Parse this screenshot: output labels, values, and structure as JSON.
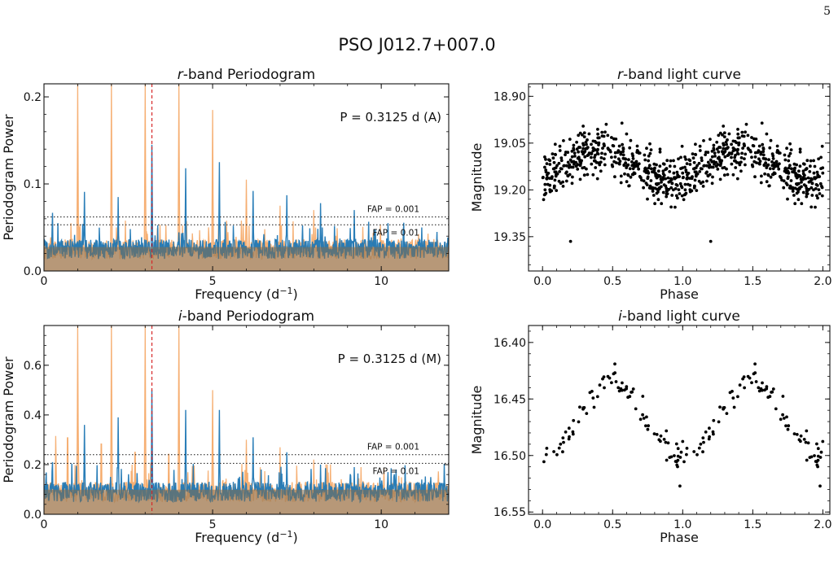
{
  "page_number": "5",
  "figure_title": "PSO J012.7+007.0",
  "chart_data": [
    {
      "type": "line",
      "title": "r-band Periodogram",
      "title_band": "r",
      "title_rest": "-band Periodogram",
      "xlabel": "Frequency (d",
      "xlabel_sup": "−1",
      "xlabel_end": ")",
      "ylabel": "Periodogram Power",
      "xlim": [
        0,
        12
      ],
      "ylim": [
        0,
        0.215
      ],
      "xticks": [
        0,
        5,
        10
      ],
      "xtick_labels": [
        "0",
        "5",
        "10"
      ],
      "yticks": [
        0.0,
        0.1,
        0.2
      ],
      "ytick_labels": [
        "0.0",
        "0.1",
        "0.2"
      ],
      "period_annotation": "P = 0.3125 d (A)",
      "best_frequency": 3.2,
      "fap_lines": [
        {
          "label": "FAP = 0.001",
          "value": 0.062
        },
        {
          "label": "FAP = 0.01",
          "value": 0.053
        }
      ],
      "noise_level": 0.025,
      "series": [
        {
          "color": "#f4a460",
          "peaks": [
            [
              1.0,
              0.215
            ],
            [
              2.0,
              0.215
            ],
            [
              3.0,
              0.215
            ],
            [
              4.0,
              0.215
            ],
            [
              5.0,
              0.185
            ],
            [
              6.0,
              0.105
            ],
            [
              7.0,
              0.075
            ],
            [
              8.0,
              0.07
            ],
            [
              1.15,
              0.04
            ],
            [
              2.2,
              0.05
            ]
          ]
        },
        {
          "color": "#1f77b4",
          "peaks": [
            [
              0.25,
              0.07
            ],
            [
              1.2,
              0.091
            ],
            [
              2.2,
              0.085
            ],
            [
              3.2,
              0.145
            ],
            [
              4.2,
              0.118
            ],
            [
              5.2,
              0.125
            ],
            [
              6.2,
              0.092
            ],
            [
              7.2,
              0.087
            ],
            [
              8.2,
              0.078
            ],
            [
              9.2,
              0.07
            ],
            [
              10.2,
              0.055
            ],
            [
              11.2,
              0.05
            ]
          ]
        }
      ]
    },
    {
      "type": "scatter",
      "title": "r-band light curve",
      "title_band": "r",
      "title_rest": "-band light curve",
      "xlabel": "Phase",
      "ylabel": "Magnitude",
      "xlim": [
        -0.1,
        2.05
      ],
      "ylim": [
        19.46,
        18.86
      ],
      "y_inverted": true,
      "xticks": [
        0.0,
        0.5,
        1.0,
        1.5,
        2.0
      ],
      "xtick_labels": [
        "0.0",
        "0.5",
        "1.0",
        "1.5",
        "2.0"
      ],
      "yticks": [
        18.9,
        19.05,
        19.2,
        19.35
      ],
      "ytick_labels": [
        "18.90",
        "19.05",
        "19.20",
        "19.35"
      ],
      "mean_magnitude": 19.12,
      "amplitude": 0.05,
      "peak_phase": 0.4,
      "scatter": 0.07,
      "points_per_cycle": 420,
      "outliers": [
        [
          0.2,
          19.365
        ],
        [
          1.2,
          19.365
        ]
      ]
    },
    {
      "type": "line",
      "title": "i-band Periodogram",
      "title_band": "i",
      "title_rest": "-band Periodogram",
      "xlabel": "Frequency (d",
      "xlabel_sup": "−1",
      "xlabel_end": ")",
      "ylabel": "Periodogram Power",
      "xlim": [
        0,
        12
      ],
      "ylim": [
        0,
        0.76
      ],
      "xticks": [
        0,
        5,
        10
      ],
      "xtick_labels": [
        "0",
        "5",
        "10"
      ],
      "yticks": [
        0.0,
        0.2,
        0.4,
        0.6
      ],
      "ytick_labels": [
        "0.0",
        "0.2",
        "0.4",
        "0.6"
      ],
      "period_annotation": "P = 0.3125 d (M)",
      "best_frequency": 3.2,
      "fap_lines": [
        {
          "label": "FAP = 0.001",
          "value": 0.24
        },
        {
          "label": "FAP = 0.01",
          "value": 0.205
        }
      ],
      "noise_level": 0.09,
      "series": [
        {
          "color": "#f4a460",
          "peaks": [
            [
              1.0,
              0.76
            ],
            [
              2.0,
              0.76
            ],
            [
              3.0,
              0.76
            ],
            [
              4.0,
              0.76
            ],
            [
              5.0,
              0.5
            ],
            [
              0.35,
              0.33
            ],
            [
              0.7,
              0.37
            ],
            [
              1.7,
              0.34
            ],
            [
              2.7,
              0.3
            ],
            [
              3.7,
              0.29
            ],
            [
              6.0,
              0.3
            ],
            [
              7.0,
              0.27
            ],
            [
              8.0,
              0.22
            ],
            [
              8.4,
              0.2
            ],
            [
              9.4,
              0.19
            ]
          ]
        },
        {
          "color": "#1f77b4",
          "peaks": [
            [
              0.25,
              0.22
            ],
            [
              1.2,
              0.36
            ],
            [
              2.2,
              0.39
            ],
            [
              3.2,
              0.5
            ],
            [
              4.2,
              0.42
            ],
            [
              5.2,
              0.42
            ],
            [
              6.2,
              0.31
            ],
            [
              7.2,
              0.25
            ],
            [
              8.2,
              0.2
            ],
            [
              9.2,
              0.19
            ],
            [
              10.2,
              0.17
            ],
            [
              11.2,
              0.14
            ]
          ]
        }
      ]
    },
    {
      "type": "scatter",
      "title": "i-band light curve",
      "title_band": "i",
      "title_rest": "-band light curve",
      "xlabel": "Phase",
      "ylabel": "Magnitude",
      "xlim": [
        -0.1,
        2.05
      ],
      "ylim": [
        16.552,
        16.385
      ],
      "y_inverted": true,
      "xticks": [
        0.0,
        0.5,
        1.0,
        1.5,
        2.0
      ],
      "xtick_labels": [
        "0.0",
        "0.5",
        "1.0",
        "1.5",
        "2.0"
      ],
      "yticks": [
        16.4,
        16.45,
        16.5,
        16.55
      ],
      "ytick_labels": [
        "16.40",
        "16.45",
        "16.50",
        "16.55"
      ],
      "mean_magnitude": 16.468,
      "amplitude": 0.034,
      "peak_phase": 0.5,
      "scatter": 0.011,
      "points_per_cycle": 85,
      "outliers": [
        [
          0.98,
          16.527
        ],
        [
          1.98,
          16.527
        ]
      ]
    }
  ]
}
